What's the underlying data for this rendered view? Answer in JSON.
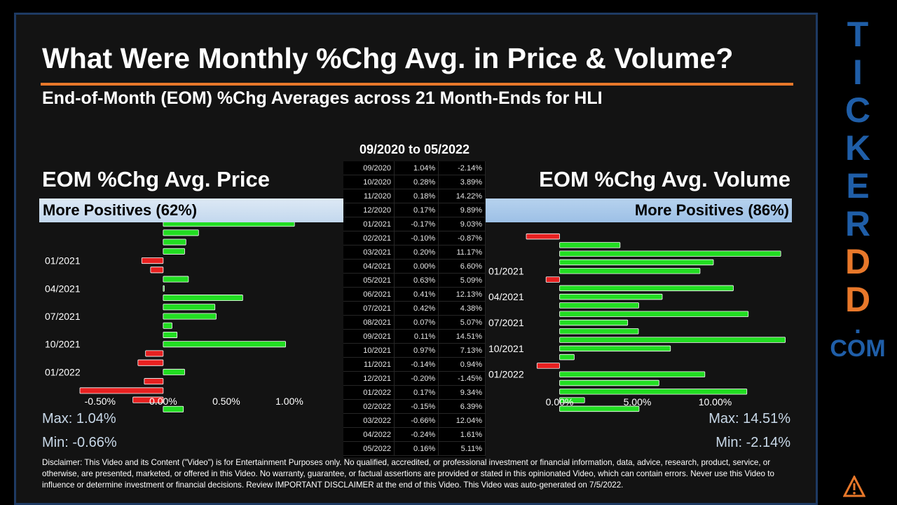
{
  "title": "What Were Monthly %Chg Avg. in Price & Volume?",
  "subtitle": "End-of-Month (EOM) %Chg Averages across 21 Month-Ends for HLI",
  "date_range": "09/2020 to 05/2022",
  "price": {
    "title": "EOM %Chg Avg. Price",
    "banner": "More Positives (62%)",
    "max": "Max: 1.04%",
    "min": "Min: -0.66%"
  },
  "volume": {
    "title": "EOM %Chg Avg. Volume",
    "banner": "More Positives (86%)",
    "max": "Max: 14.51%",
    "min": "Min: -2.14%"
  },
  "table": {
    "rows": [
      [
        "09/2020",
        "1.04%",
        "-2.14%"
      ],
      [
        "10/2020",
        "0.28%",
        "3.89%"
      ],
      [
        "11/2020",
        "0.18%",
        "14.22%"
      ],
      [
        "12/2020",
        "0.17%",
        "9.89%"
      ],
      [
        "01/2021",
        "-0.17%",
        "9.03%"
      ],
      [
        "02/2021",
        "-0.10%",
        "-0.87%"
      ],
      [
        "03/2021",
        "0.20%",
        "11.17%"
      ],
      [
        "04/2021",
        "0.00%",
        "6.60%"
      ],
      [
        "05/2021",
        "0.63%",
        "5.09%"
      ],
      [
        "06/2021",
        "0.41%",
        "12.13%"
      ],
      [
        "07/2021",
        "0.42%",
        "4.38%"
      ],
      [
        "08/2021",
        "0.07%",
        "5.07%"
      ],
      [
        "09/2021",
        "0.11%",
        "14.51%"
      ],
      [
        "10/2021",
        "0.97%",
        "7.13%"
      ],
      [
        "11/2021",
        "-0.14%",
        "0.94%"
      ],
      [
        "12/2021",
        "-0.20%",
        "-1.45%"
      ],
      [
        "01/2022",
        "0.17%",
        "9.34%"
      ],
      [
        "02/2022",
        "-0.15%",
        "6.39%"
      ],
      [
        "03/2022",
        "-0.66%",
        "12.04%"
      ],
      [
        "04/2022",
        "-0.24%",
        "1.61%"
      ],
      [
        "05/2022",
        "0.16%",
        "5.11%"
      ]
    ]
  },
  "chart_data": [
    {
      "type": "bar",
      "orientation": "horizontal",
      "title": "EOM %Chg Avg. Price",
      "categories": [
        "09/2020",
        "10/2020",
        "11/2020",
        "12/2020",
        "01/2021",
        "02/2021",
        "03/2021",
        "04/2021",
        "05/2021",
        "06/2021",
        "07/2021",
        "08/2021",
        "09/2021",
        "10/2021",
        "11/2021",
        "12/2021",
        "01/2022",
        "02/2022",
        "03/2022",
        "04/2022",
        "05/2022"
      ],
      "values": [
        1.04,
        0.28,
        0.18,
        0.17,
        -0.17,
        -0.1,
        0.2,
        0.0,
        0.63,
        0.41,
        0.42,
        0.07,
        0.11,
        0.97,
        -0.14,
        -0.2,
        0.17,
        -0.15,
        -0.66,
        -0.24,
        0.16
      ],
      "y_tick_labels": [
        "01/2021",
        "04/2021",
        "07/2021",
        "10/2021",
        "01/2022"
      ],
      "x_ticks": [
        -0.5,
        0,
        0.5,
        1.0
      ],
      "x_tick_labels": [
        "-0.50%",
        "0.00%",
        "0.50%",
        "1.00%"
      ],
      "xlim": [
        -0.66,
        1.15
      ],
      "positive_color": "#22dd22",
      "negative_color": "#e82020"
    },
    {
      "type": "bar",
      "orientation": "horizontal",
      "title": "EOM %Chg Avg. Volume",
      "categories": [
        "09/2020",
        "10/2020",
        "11/2020",
        "12/2020",
        "01/2021",
        "02/2021",
        "03/2021",
        "04/2021",
        "05/2021",
        "06/2021",
        "07/2021",
        "08/2021",
        "09/2021",
        "10/2021",
        "11/2021",
        "12/2021",
        "01/2022",
        "02/2022",
        "03/2022",
        "04/2022",
        "05/2022"
      ],
      "values": [
        -2.14,
        3.89,
        14.22,
        9.89,
        9.03,
        -0.87,
        11.17,
        6.6,
        5.09,
        12.13,
        4.38,
        5.07,
        14.51,
        7.13,
        0.94,
        -1.45,
        9.34,
        6.39,
        12.04,
        1.61,
        5.11
      ],
      "y_tick_labels": [
        "01/2021",
        "04/2021",
        "07/2021",
        "10/2021",
        "01/2022"
      ],
      "x_ticks": [
        0,
        5,
        10
      ],
      "x_tick_labels": [
        "0.00%",
        "5.00%",
        "10.00%"
      ],
      "xlim": [
        -2.14,
        14.8
      ],
      "positive_color": "#22dd22",
      "negative_color": "#e82020"
    }
  ],
  "disclaimer": "Disclaimer: This Video and its Content (\"Video\") is for Entertainment Purposes only. No qualified, accredited, or professional investment or financial information, data, advice, research, product, service, or otherwise, are presented, marketed, or offered in this Video. No warranty, guarantee, or factual assertions are provided or stated in this opinionated Video, which can contain errors. Never use this Video to influence or determine investment or financial decisions. Review IMPORTANT DISCLAIMER at the end of this Video. This Video was auto-generated on 7/5/2022.",
  "side_logo": {
    "letters": [
      "T",
      "I",
      "C",
      "K",
      "E",
      "R",
      "D",
      "D"
    ],
    "letter_colors": [
      "#1f5ea8",
      "#1f5ea8",
      "#1f5ea8",
      "#1f5ea8",
      "#1f5ea8",
      "#1f5ea8",
      "#e8782a",
      "#e8782a"
    ],
    "dot": ".",
    "com": "COM",
    "mark_icon": "triangle-warning-logo-icon"
  }
}
